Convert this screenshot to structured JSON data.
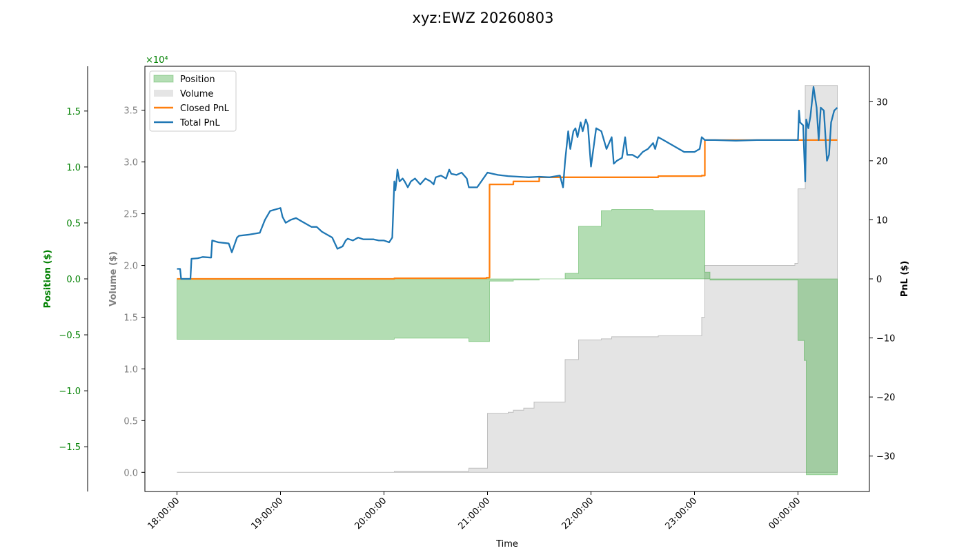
{
  "chart_data": {
    "type": "line",
    "title": "xyz:EWZ 20260803",
    "xlabel": "Time",
    "x_ticks": [
      "18:00:00",
      "19:00:00",
      "20:00:00",
      "21:00:00",
      "22:00:00",
      "23:00:00",
      "00:00:00"
    ],
    "x_range_hours": [
      17.69,
      24.69
    ],
    "axes": {
      "position": {
        "label": "Position ($)",
        "color": "#008000",
        "range": [
          -1.9,
          1.9
        ],
        "ticks": [
          -1.5,
          -1.0,
          -0.5,
          0.0,
          0.5,
          1.0,
          1.5
        ],
        "tick_labels": [
          "−1.5",
          "−1.0",
          "−0.5",
          "0.0",
          "0.5",
          "1.0",
          "1.5"
        ],
        "exponent_label": "×10⁴"
      },
      "volume": {
        "label": "Volume ($)",
        "color": "#808080",
        "range": [
          -0.185,
          3.925
        ],
        "ticks": [
          0.0,
          0.5,
          1.0,
          1.5,
          2.0,
          2.5,
          3.0,
          3.5
        ],
        "tick_labels": [
          "0.0",
          "0.5",
          "1.0",
          "1.5",
          "2.0",
          "2.5",
          "3.0",
          "3.5"
        ]
      },
      "pnl": {
        "label": "PnL ($)",
        "color": "#000000",
        "range": [
          -36,
          36
        ],
        "ticks": [
          -30,
          -20,
          -10,
          0,
          10,
          20,
          30
        ],
        "tick_labels": [
          "−30",
          "−20",
          "−10",
          "0",
          "10",
          "20",
          "30"
        ]
      }
    },
    "legend": {
      "placement": "top-left",
      "entries": [
        {
          "label": "Position",
          "kind": "patch",
          "color": "#2ca02c"
        },
        {
          "label": "Volume",
          "kind": "patch",
          "color": "#bfbfbf"
        },
        {
          "label": "Closed PnL",
          "kind": "line",
          "color": "#ff7f0e"
        },
        {
          "label": "Total PnL",
          "kind": "line",
          "color": "#1f77b4"
        }
      ]
    },
    "series": [
      {
        "name": "Position",
        "axis": "position",
        "color": "#2ca02c",
        "step": true,
        "x": [
          18.0,
          20.1,
          20.82,
          21.0,
          21.02,
          21.25,
          21.5,
          21.75,
          21.88,
          22.1,
          22.2,
          22.6,
          23.07,
          23.1,
          23.15,
          23.7,
          23.95,
          24.0,
          24.06,
          24.08,
          24.38
        ],
        "y": [
          -0.54,
          -0.53,
          -0.56,
          -0.56,
          -0.02,
          -0.01,
          0.0,
          0.05,
          0.47,
          0.61,
          0.62,
          0.61,
          0.61,
          0.06,
          -0.01,
          -0.01,
          -0.01,
          -0.55,
          -0.73,
          -1.75,
          -1.75
        ]
      },
      {
        "name": "Volume",
        "axis": "volume",
        "color": "#bfbfbf",
        "step": true,
        "x": [
          18.0,
          20.1,
          20.82,
          21.0,
          21.2,
          21.25,
          21.35,
          21.45,
          21.75,
          21.88,
          22.1,
          22.2,
          22.65,
          23.07,
          23.1,
          23.65,
          23.97,
          24.0,
          24.07,
          24.38
        ],
        "y": [
          0.0,
          0.01,
          0.04,
          0.57,
          0.58,
          0.6,
          0.62,
          0.68,
          1.09,
          1.28,
          1.29,
          1.31,
          1.32,
          1.5,
          2.0,
          2.0,
          2.02,
          2.74,
          3.74,
          3.74
        ]
      },
      {
        "name": "Closed PnL",
        "axis": "pnl",
        "color": "#ff7f0e",
        "step": true,
        "x": [
          18.0,
          20.1,
          20.99,
          21.02,
          21.25,
          21.5,
          22.65,
          23.07,
          23.1,
          24.38
        ],
        "y": [
          0.0,
          0.1,
          0.2,
          16.0,
          16.5,
          17.2,
          17.4,
          17.5,
          23.5,
          23.5
        ]
      },
      {
        "name": "Total PnL",
        "axis": "pnl",
        "color": "#1f77b4",
        "step": false,
        "x": [
          18.0,
          18.03,
          18.04,
          18.13,
          18.14,
          18.2,
          18.25,
          18.33,
          18.34,
          18.4,
          18.5,
          18.53,
          18.58,
          18.6,
          18.7,
          18.8,
          18.85,
          18.9,
          19.0,
          19.02,
          19.05,
          19.1,
          19.15,
          19.2,
          19.3,
          19.35,
          19.4,
          19.5,
          19.55,
          19.6,
          19.63,
          19.65,
          19.7,
          19.75,
          19.8,
          19.9,
          19.95,
          20.0,
          20.05,
          20.08,
          20.1,
          20.11,
          20.12,
          20.13,
          20.15,
          20.18,
          20.2,
          20.23,
          20.26,
          20.3,
          20.35,
          20.4,
          20.45,
          20.48,
          20.5,
          20.55,
          20.6,
          20.63,
          20.65,
          20.7,
          20.75,
          20.8,
          20.82,
          20.85,
          20.9,
          21.0,
          21.05,
          21.1,
          21.2,
          21.3,
          21.4,
          21.5,
          21.6,
          21.7,
          21.73,
          21.75,
          21.78,
          21.8,
          21.83,
          21.85,
          21.87,
          21.9,
          21.92,
          21.95,
          21.97,
          22.0,
          22.05,
          22.1,
          22.15,
          22.2,
          22.22,
          22.25,
          22.3,
          22.33,
          22.35,
          22.4,
          22.45,
          22.5,
          22.55,
          22.6,
          22.62,
          22.65,
          22.7,
          22.8,
          22.9,
          23.0,
          23.05,
          23.07,
          23.1,
          23.2,
          23.4,
          23.6,
          23.8,
          24.0,
          24.01,
          24.02,
          24.05,
          24.07,
          24.08,
          24.1,
          24.12,
          24.15,
          24.18,
          24.2,
          24.22,
          24.25,
          24.28,
          24.3,
          24.32,
          24.35,
          24.38
        ],
        "y": [
          1.7,
          1.7,
          0.0,
          0.0,
          3.4,
          3.5,
          3.7,
          3.6,
          6.5,
          6.2,
          6.0,
          4.5,
          7.0,
          7.3,
          7.5,
          7.8,
          10.0,
          11.5,
          12.0,
          10.5,
          9.5,
          10.0,
          10.3,
          9.8,
          8.8,
          8.8,
          8.0,
          7.0,
          5.1,
          5.5,
          6.5,
          6.8,
          6.5,
          7.0,
          6.7,
          6.7,
          6.5,
          6.5,
          6.2,
          7.0,
          16.5,
          15.0,
          16.5,
          18.5,
          16.5,
          17.0,
          16.5,
          15.5,
          16.5,
          17.0,
          16.0,
          17.0,
          16.5,
          16.0,
          17.2,
          17.5,
          17.0,
          18.5,
          17.8,
          17.6,
          18.0,
          17.0,
          15.5,
          15.5,
          15.5,
          18.0,
          17.8,
          17.6,
          17.4,
          17.3,
          17.2,
          17.3,
          17.2,
          17.5,
          15.5,
          20.0,
          25.0,
          22.0,
          25.0,
          25.5,
          24.0,
          26.5,
          25.0,
          27.0,
          26.0,
          19.0,
          25.5,
          25.0,
          22.0,
          24.0,
          19.5,
          20.0,
          20.5,
          24.0,
          21.0,
          21.0,
          20.5,
          21.5,
          22.0,
          23.0,
          22.0,
          24.0,
          23.5,
          22.5,
          21.5,
          21.5,
          22.0,
          24.0,
          23.5,
          23.5,
          23.4,
          23.5,
          23.5,
          23.5,
          28.5,
          26.5,
          26.0,
          16.5,
          27.0,
          25.5,
          27.5,
          32.5,
          29.0,
          23.5,
          29.0,
          28.5,
          20.0,
          21.0,
          26.5,
          28.5,
          29.0
        ]
      }
    ]
  }
}
